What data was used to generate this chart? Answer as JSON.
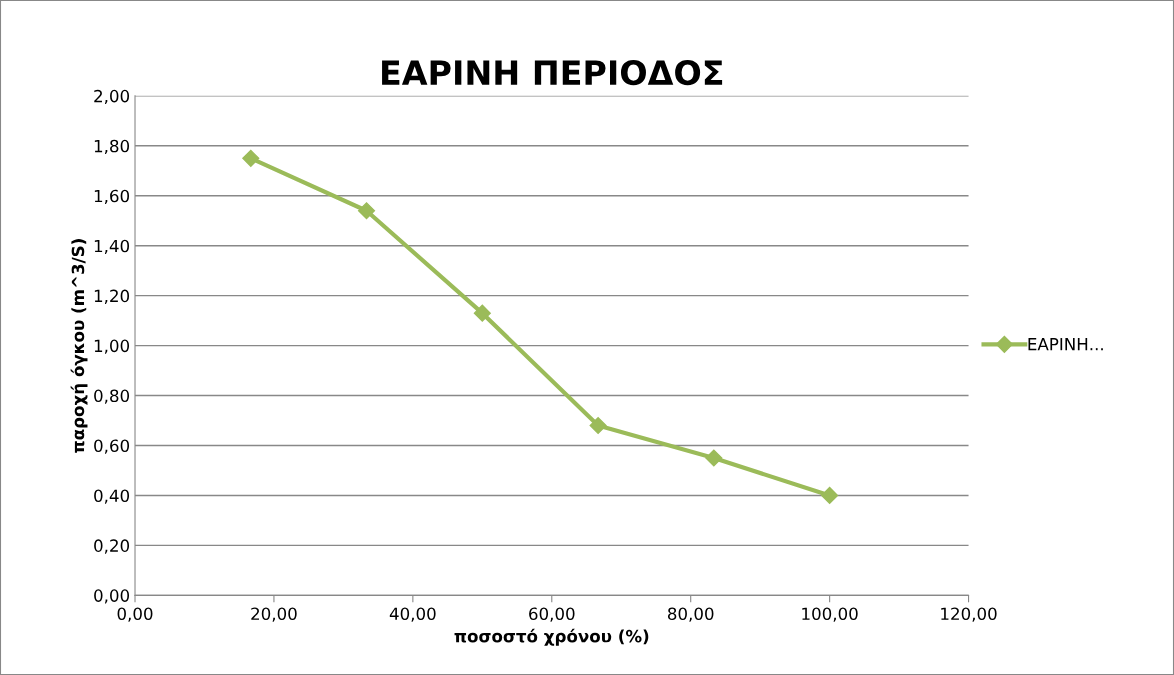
{
  "chart_data": {
    "type": "line",
    "title": "ΕΑΡΙΝΗ ΠΕΡΙΟΔΟΣ",
    "xlabel": "ποσοστό χρόνου (%)",
    "ylabel": "παροχή όγκου (m^3/S)",
    "x": [
      16.67,
      33.33,
      50,
      66.67,
      83.33,
      100
    ],
    "series": [
      {
        "name": "ΕΑΡΙΝΗ...",
        "color": "#9bbb59",
        "values": [
          1.75,
          1.54,
          1.13,
          0.68,
          0.55,
          0.4
        ]
      }
    ],
    "xlim": [
      0,
      120
    ],
    "ylim": [
      0,
      2
    ],
    "xticks": [
      {
        "value": 0,
        "label": "0,00"
      },
      {
        "value": 20,
        "label": "20,00"
      },
      {
        "value": 40,
        "label": "40,00"
      },
      {
        "value": 60,
        "label": "60,00"
      },
      {
        "value": 80,
        "label": "80,00"
      },
      {
        "value": 100,
        "label": "100,00"
      },
      {
        "value": 120,
        "label": "120,00"
      }
    ],
    "yticks": [
      {
        "value": 0,
        "label": "0,00"
      },
      {
        "value": 0.2,
        "label": "0,20"
      },
      {
        "value": 0.4,
        "label": "0,40"
      },
      {
        "value": 0.6,
        "label": "0,60"
      },
      {
        "value": 0.8,
        "label": "0,80"
      },
      {
        "value": 1.0,
        "label": "1,00"
      },
      {
        "value": 1.2,
        "label": "1,20"
      },
      {
        "value": 1.4,
        "label": "1,40"
      },
      {
        "value": 1.6,
        "label": "1,60"
      },
      {
        "value": 1.8,
        "label": "1,80"
      },
      {
        "value": 2.0,
        "label": "2,00"
      }
    ],
    "grid": "y",
    "legend": "right",
    "marker": "diamond",
    "line_style": "solid"
  }
}
